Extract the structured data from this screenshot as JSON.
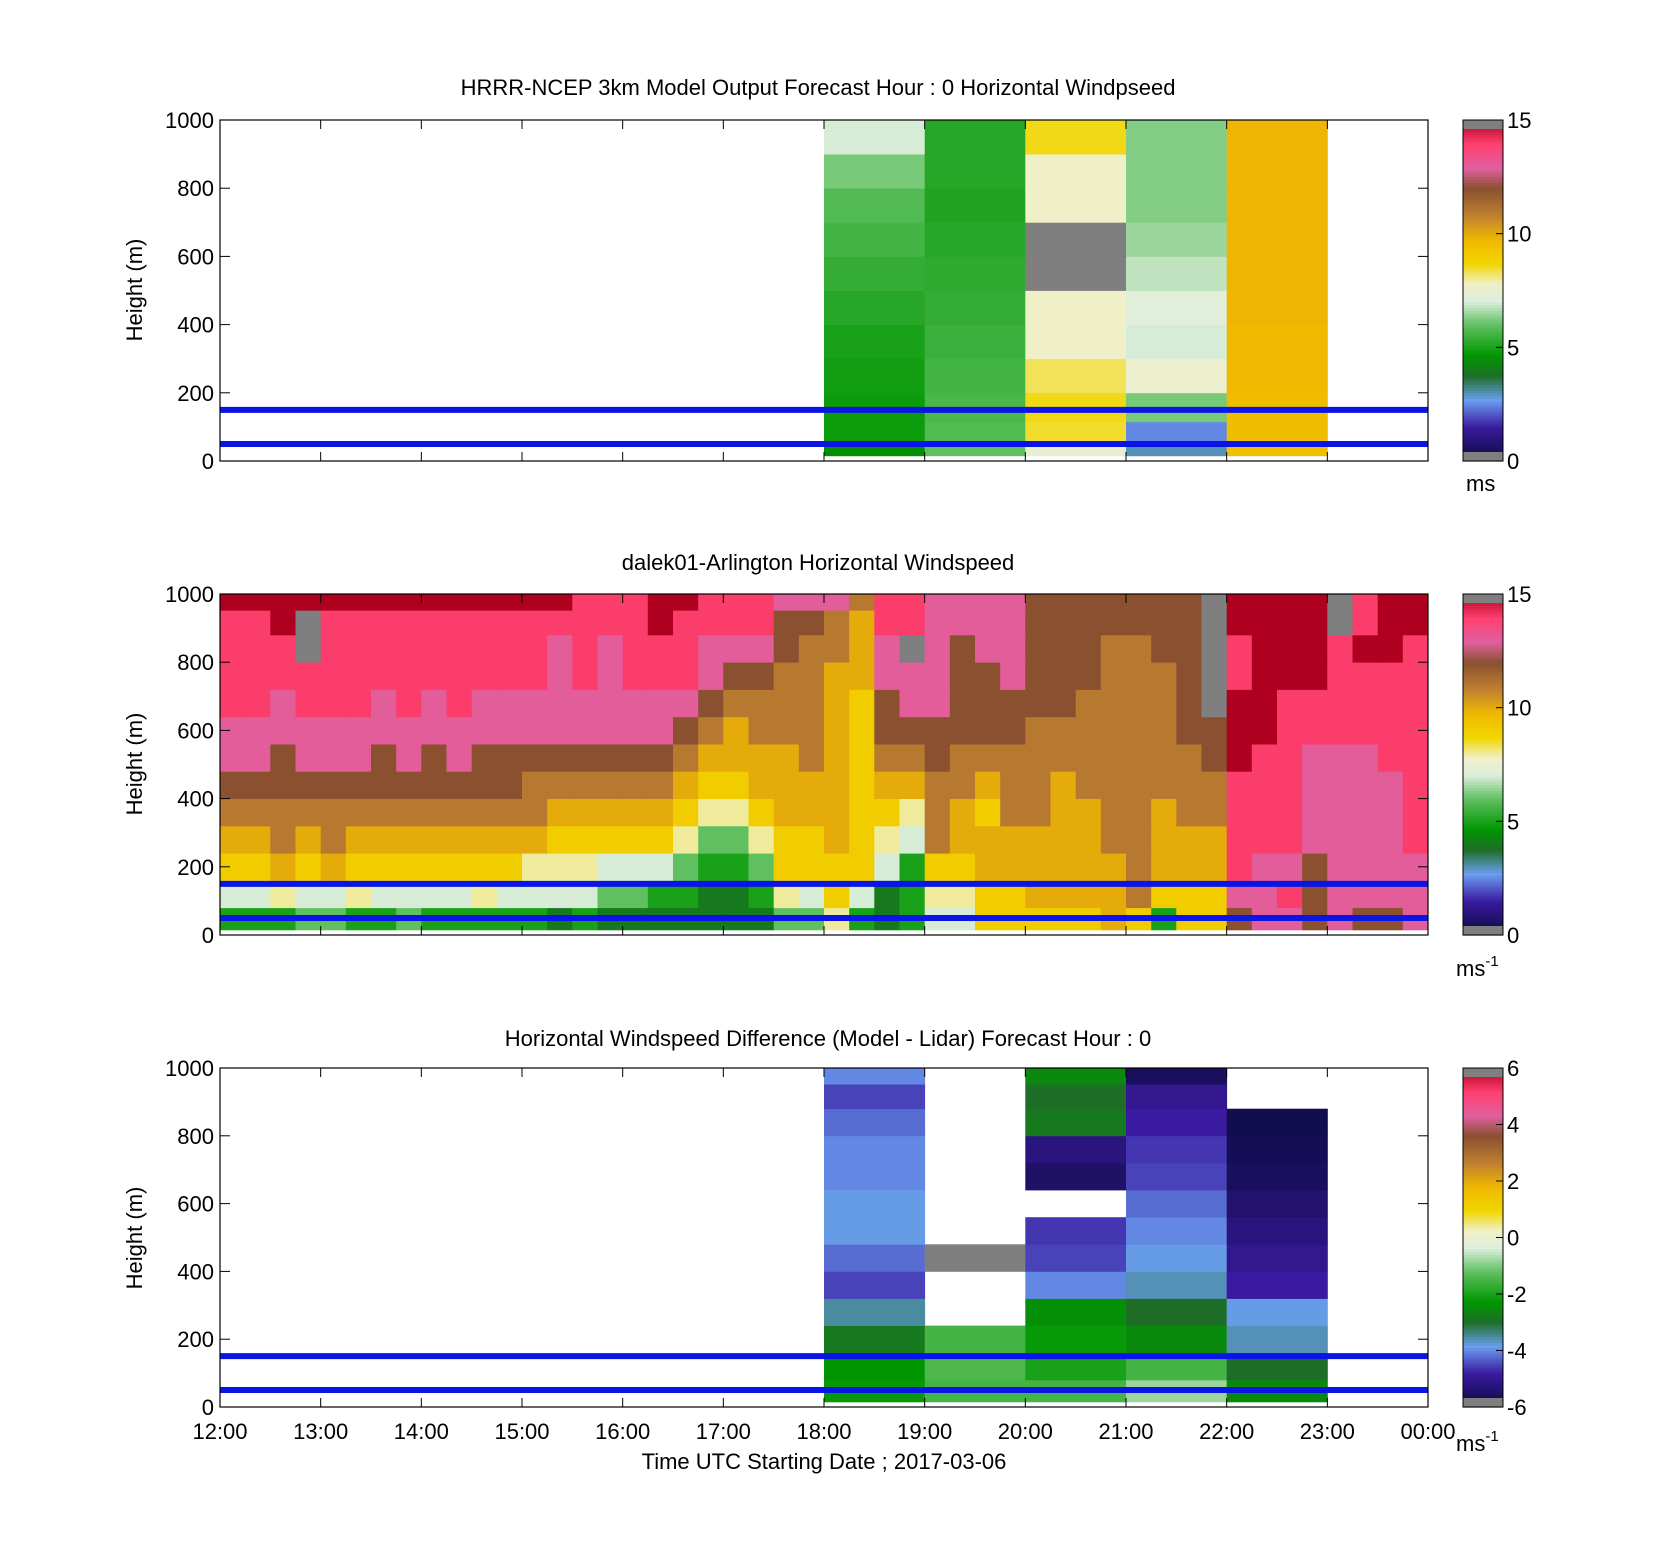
{
  "figure": {
    "xlabel": "Time UTC  Starting Date ; 2017-03-06",
    "x_tick_labels": [
      "12:00",
      "13:00",
      "14:00",
      "15:00",
      "16:00",
      "17:00",
      "18:00",
      "19:00",
      "20:00",
      "21:00",
      "22:00",
      "23:00",
      "00:00"
    ],
    "band_lines_m": [
      50,
      150
    ],
    "band_line_color": "#0a14e6"
  },
  "chart_data": [
    {
      "type": "heatmap",
      "title": "HRRR-NCEP 3km Model Output   Forecast Hour : 0 Horizontal Windpseed",
      "xlabel": "",
      "ylabel": "Height (m)",
      "y_ticks": [
        "0",
        "200",
        "400",
        "600",
        "800",
        "1000"
      ],
      "xlim_hours": [
        12,
        24
      ],
      "ylim": [
        0,
        1000
      ],
      "colorbar": {
        "ticks": [
          "0",
          "5",
          "10",
          "15"
        ],
        "range": [
          0,
          15
        ],
        "unit_label": "ms",
        "unit_superscript": ""
      },
      "x_columns_start_hour": [
        18,
        19,
        20,
        21,
        22
      ],
      "column_width_hours": 1,
      "y_levels_m": [
        30,
        80,
        150,
        250,
        350,
        450,
        550,
        650,
        750,
        850,
        950
      ],
      "values": [
        [
          4.5,
          6.0,
          7.5,
          3.0,
          9.5
        ],
        [
          4.8,
          5.8,
          8.5,
          2.5,
          9.6
        ],
        [
          4.8,
          5.7,
          8.6,
          6.2,
          9.6
        ],
        [
          4.9,
          5.6,
          8.3,
          7.6,
          9.7
        ],
        [
          5.0,
          5.5,
          7.8,
          7.0,
          9.7
        ],
        [
          5.2,
          5.4,
          7.8,
          7.2,
          9.8
        ],
        [
          5.4,
          5.3,
          16.0,
          6.8,
          9.8
        ],
        [
          5.6,
          5.2,
          16.0,
          6.5,
          9.8
        ],
        [
          5.8,
          5.1,
          7.8,
          6.3,
          9.8
        ],
        [
          6.2,
          5.2,
          7.8,
          6.3,
          9.8
        ],
        [
          7.0,
          5.2,
          8.6,
          6.3,
          9.8
        ]
      ]
    },
    {
      "type": "heatmap",
      "title": "dalek01-Arlington  Horizontal Windspeed",
      "xlabel": "",
      "ylabel": "Height (m)",
      "y_ticks": [
        "0",
        "200",
        "400",
        "600",
        "800",
        "1000"
      ],
      "xlim_hours": [
        12,
        24
      ],
      "ylim": [
        0,
        1000
      ],
      "colorbar": {
        "ticks": [
          "0",
          "5",
          "10",
          "15"
        ],
        "range": [
          0,
          15
        ],
        "unit_label": "ms",
        "unit_superscript": "-1"
      },
      "x_columns_start_hour": [
        12.0,
        12.25,
        12.5,
        12.75,
        13.0,
        13.25,
        13.5,
        13.75,
        14.0,
        14.25,
        14.5,
        14.75,
        15.0,
        15.25,
        15.5,
        15.75,
        16.0,
        16.25,
        16.5,
        16.75,
        17.0,
        17.25,
        17.5,
        17.75,
        18.0,
        18.25,
        18.5,
        18.75,
        19.0,
        19.25,
        19.5,
        19.75,
        20.0,
        20.25,
        20.5,
        20.75,
        21.0,
        21.25,
        21.5,
        21.75,
        22.0,
        22.25,
        22.5,
        22.75,
        23.0,
        23.25,
        23.5,
        23.75
      ],
      "column_width_hours": 0.25,
      "y_levels_m": [
        40,
        120,
        200,
        280,
        360,
        440,
        520,
        600,
        680,
        760,
        840,
        920,
        985
      ],
      "values": [
        [
          5,
          5,
          5,
          6,
          6,
          5,
          5,
          6,
          5,
          5,
          5,
          5,
          5,
          4,
          5,
          4,
          4,
          4,
          4,
          4,
          4,
          4,
          6,
          6,
          8,
          5,
          4,
          5,
          7,
          7,
          9,
          9,
          9,
          9,
          9,
          10,
          9,
          5,
          9,
          9,
          12,
          13,
          13,
          12,
          13,
          12,
          12,
          13
        ],
        [
          7,
          7,
          8,
          7,
          7,
          8,
          7,
          7,
          7,
          7,
          8,
          7,
          7,
          7,
          7,
          6,
          6,
          5,
          5,
          4,
          4,
          5,
          8,
          7,
          9,
          7,
          4,
          5,
          8,
          8,
          9,
          9,
          10,
          10,
          10,
          10,
          11,
          9,
          9,
          9,
          13,
          13,
          14,
          12,
          13,
          13,
          13,
          13
        ],
        [
          9,
          9,
          10,
          9,
          10,
          9,
          9,
          9,
          9,
          9,
          9,
          9,
          8,
          8,
          8,
          7,
          7,
          7,
          6,
          5,
          5,
          6,
          9,
          9,
          9,
          9,
          7,
          5,
          9,
          9,
          10,
          10,
          10,
          10,
          10,
          10,
          11,
          10,
          10,
          10,
          14,
          13,
          13,
          12,
          13,
          13,
          13,
          13
        ],
        [
          10,
          10,
          11,
          10,
          11,
          10,
          10,
          10,
          10,
          10,
          10,
          10,
          10,
          9,
          9,
          9,
          9,
          9,
          8,
          6,
          6,
          8,
          9,
          9,
          10,
          9,
          8,
          7,
          11,
          10,
          10,
          10,
          10,
          10,
          10,
          11,
          11,
          10,
          10,
          10,
          14,
          14,
          14,
          13,
          13,
          13,
          13,
          14
        ],
        [
          11,
          11,
          11,
          11,
          11,
          11,
          11,
          11,
          11,
          11,
          11,
          11,
          11,
          10,
          10,
          10,
          10,
          10,
          9,
          8,
          8,
          9,
          10,
          10,
          10,
          9,
          9,
          8,
          11,
          10,
          9,
          11,
          11,
          10,
          10,
          11,
          11,
          10,
          11,
          11,
          14,
          14,
          14,
          13,
          13,
          13,
          13,
          14
        ],
        [
          12,
          12,
          12,
          12,
          12,
          12,
          12,
          12,
          12,
          12,
          12,
          12,
          11,
          11,
          11,
          11,
          11,
          11,
          10,
          9,
          9,
          10,
          10,
          10,
          10,
          9,
          10,
          10,
          11,
          11,
          10,
          11,
          11,
          10,
          11,
          11,
          11,
          11,
          11,
          11,
          14,
          14,
          14,
          13,
          13,
          13,
          13,
          14
        ],
        [
          13,
          13,
          12,
          13,
          13,
          13,
          12,
          13,
          12,
          13,
          12,
          12,
          12,
          12,
          12,
          12,
          12,
          12,
          11,
          10,
          10,
          10,
          10,
          11,
          10,
          9,
          11,
          11,
          12,
          11,
          11,
          11,
          11,
          11,
          11,
          11,
          11,
          11,
          11,
          12,
          15,
          14,
          14,
          13,
          13,
          13,
          14,
          14
        ],
        [
          13,
          13,
          13,
          13,
          13,
          13,
          13,
          13,
          13,
          13,
          13,
          13,
          13,
          13,
          13,
          13,
          13,
          13,
          12,
          11,
          10,
          11,
          11,
          11,
          10,
          9,
          12,
          12,
          12,
          12,
          12,
          12,
          11,
          11,
          11,
          11,
          11,
          11,
          12,
          12,
          15,
          15,
          14,
          14,
          14,
          14,
          14,
          14
        ],
        [
          14,
          14,
          13,
          14,
          14,
          14,
          13,
          14,
          13,
          14,
          13,
          13,
          13,
          13,
          13,
          13,
          13,
          13,
          13,
          12,
          11,
          11,
          11,
          11,
          10,
          9,
          12,
          13,
          13,
          12,
          12,
          12,
          12,
          12,
          11,
          11,
          11,
          11,
          12,
          16,
          15,
          15,
          14,
          14,
          14,
          14,
          14,
          14
        ],
        [
          14,
          14,
          14,
          14,
          14,
          14,
          14,
          14,
          14,
          14,
          14,
          14,
          14,
          13,
          14,
          13,
          14,
          14,
          14,
          13,
          12,
          12,
          11,
          11,
          10,
          10,
          13,
          13,
          13,
          12,
          12,
          13,
          12,
          12,
          12,
          11,
          11,
          11,
          12,
          16,
          14,
          15,
          15,
          15,
          14,
          14,
          14,
          14
        ],
        [
          14,
          14,
          14,
          16,
          14,
          14,
          14,
          14,
          14,
          14,
          14,
          14,
          14,
          13,
          14,
          13,
          14,
          14,
          14,
          13,
          13,
          13,
          12,
          11,
          11,
          10,
          13,
          16,
          13,
          12,
          13,
          13,
          12,
          12,
          12,
          11,
          11,
          12,
          12,
          16,
          14,
          15,
          15,
          15,
          14,
          15,
          15,
          14
        ],
        [
          14,
          14,
          15,
          16,
          14,
          14,
          14,
          14,
          14,
          14,
          14,
          14,
          14,
          14,
          14,
          14,
          14,
          15,
          14,
          14,
          14,
          14,
          12,
          12,
          11,
          10,
          14,
          14,
          13,
          13,
          13,
          13,
          12,
          12,
          12,
          12,
          12,
          12,
          12,
          16,
          15,
          15,
          15,
          15,
          16,
          14,
          15,
          15
        ],
        [
          15,
          15,
          15,
          15,
          15,
          15,
          15,
          15,
          15,
          15,
          15,
          15,
          15,
          15,
          14,
          14,
          14,
          15,
          15,
          14,
          14,
          14,
          13,
          13,
          13,
          11,
          14,
          14,
          13,
          13,
          13,
          13,
          12,
          12,
          12,
          12,
          12,
          12,
          12,
          16,
          15,
          15,
          15,
          15,
          16,
          14,
          15,
          15
        ]
      ]
    },
    {
      "type": "heatmap",
      "title": "Horizontal Windspeed Difference (Model - Lidar) Forecast Hour : 0",
      "xlabel": "Time UTC  Starting Date ; 2017-03-06",
      "ylabel": "Height (m)",
      "y_ticks": [
        "0",
        "200",
        "400",
        "600",
        "800",
        "1000"
      ],
      "xlim_hours": [
        12,
        24
      ],
      "ylim": [
        0,
        1000
      ],
      "colorbar": {
        "ticks": [
          "-6",
          "-4",
          "-2",
          "0",
          "2",
          "4",
          "6"
        ],
        "range": [
          -6,
          6
        ],
        "unit_label": "ms",
        "unit_superscript": "-1"
      },
      "x_columns_start_hour": [
        18,
        19,
        20,
        21,
        22
      ],
      "column_width_hours": 1,
      "y_levels_m": [
        40,
        120,
        200,
        280,
        360,
        440,
        520,
        600,
        680,
        760,
        840,
        920,
        985
      ],
      "values": [
        [
          -2.2,
          -1.5,
          -1.5,
          -0.8,
          -2.5
        ],
        [
          -2.3,
          -1.4,
          -2.0,
          -1.5,
          -3.0
        ],
        [
          -2.8,
          -1.5,
          -2.2,
          -2.5,
          -3.6
        ],
        [
          -3.5,
          null,
          -2.4,
          -3.0,
          -3.8
        ],
        [
          -4.5,
          null,
          -4.0,
          -3.6,
          -4.8
        ],
        [
          -4.2,
          -6.5,
          -4.5,
          -3.8,
          -5.0
        ],
        [
          -3.8,
          null,
          -4.6,
          -4.0,
          -5.2
        ],
        [
          -3.8,
          null,
          null,
          -4.2,
          -5.4
        ],
        [
          -4.0,
          null,
          -5.5,
          -4.5,
          -5.6
        ],
        [
          -4.0,
          null,
          -5.2,
          -4.6,
          -5.7
        ],
        [
          -4.2,
          null,
          -2.8,
          -4.8,
          -5.8
        ],
        [
          -4.5,
          null,
          -3.0,
          -5.0,
          null
        ],
        [
          -4.0,
          null,
          -2.5,
          -5.6,
          null
        ]
      ]
    }
  ]
}
